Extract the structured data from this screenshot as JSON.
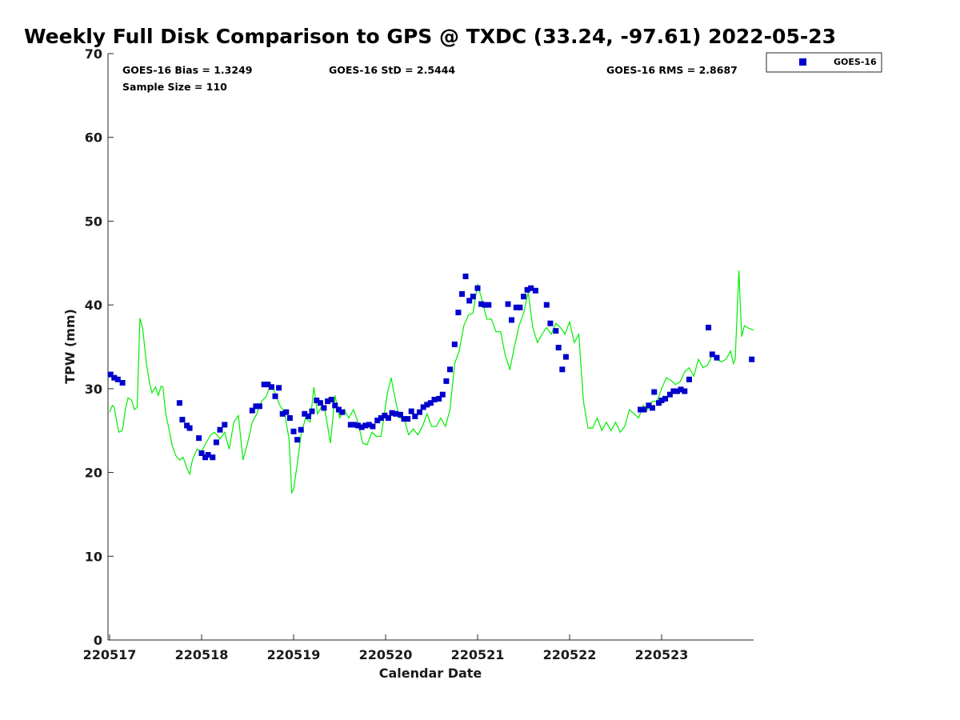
{
  "chart_data": {
    "type": "scatter",
    "title": "Weekly Full Disk Comparison to GPS @ TXDC (33.24, -97.61) 2022-05-23",
    "xlabel": "Calendar Date",
    "ylabel": "TPW (mm)",
    "xlim": [
      0,
      7.0
    ],
    "ylim": [
      0,
      70
    ],
    "x_tick_values": [
      0,
      1,
      2,
      3,
      4,
      5,
      6
    ],
    "x_tick_labels": [
      "220517",
      "220518",
      "220519",
      "220520",
      "220521",
      "220522",
      "220523"
    ],
    "y_ticks": [
      0,
      10,
      20,
      30,
      40,
      50,
      60,
      70
    ],
    "x_unit_note": "days since 2022-05-17 00Z",
    "grid": false,
    "legend_position": "top-right-outside",
    "stats": {
      "bias": "GOES-16 Bias = 1.3249",
      "std": "GOES-16 StD = 2.5444",
      "rms": "GOES-16 RMS = 2.8687",
      "sample": "Sample Size = 110"
    },
    "series": [
      {
        "name": "GOES-16",
        "kind": "markers",
        "color": "#0000cc",
        "points": [
          [
            0.01,
            31.7
          ],
          [
            0.05,
            31.3
          ],
          [
            0.09,
            31.1
          ],
          [
            0.14,
            30.7
          ],
          [
            0.76,
            28.3
          ],
          [
            0.79,
            26.3
          ],
          [
            0.84,
            25.6
          ],
          [
            0.87,
            25.3
          ],
          [
            0.97,
            24.1
          ],
          [
            1.0,
            22.3
          ],
          [
            1.04,
            21.8
          ],
          [
            1.07,
            22.1
          ],
          [
            1.12,
            21.8
          ],
          [
            1.16,
            23.6
          ],
          [
            1.2,
            25.1
          ],
          [
            1.25,
            25.7
          ],
          [
            1.55,
            27.4
          ],
          [
            1.59,
            27.9
          ],
          [
            1.63,
            27.9
          ],
          [
            1.68,
            30.5
          ],
          [
            1.72,
            30.5
          ],
          [
            1.76,
            30.2
          ],
          [
            1.8,
            29.1
          ],
          [
            1.84,
            30.1
          ],
          [
            1.88,
            27.0
          ],
          [
            1.92,
            27.2
          ],
          [
            1.96,
            26.5
          ],
          [
            2.0,
            24.9
          ],
          [
            2.04,
            23.9
          ],
          [
            2.08,
            25.1
          ],
          [
            2.12,
            27.0
          ],
          [
            2.16,
            26.7
          ],
          [
            2.2,
            27.3
          ],
          [
            2.25,
            28.6
          ],
          [
            2.29,
            28.3
          ],
          [
            2.33,
            27.7
          ],
          [
            2.37,
            28.5
          ],
          [
            2.41,
            28.7
          ],
          [
            2.45,
            28.0
          ],
          [
            2.49,
            27.5
          ],
          [
            2.53,
            27.2
          ],
          [
            2.62,
            25.7
          ],
          [
            2.66,
            25.7
          ],
          [
            2.7,
            25.6
          ],
          [
            2.74,
            25.4
          ],
          [
            2.78,
            25.6
          ],
          [
            2.82,
            25.7
          ],
          [
            2.86,
            25.5
          ],
          [
            2.91,
            26.2
          ],
          [
            2.95,
            26.5
          ],
          [
            2.99,
            26.8
          ],
          [
            3.03,
            26.5
          ],
          [
            3.07,
            27.1
          ],
          [
            3.11,
            27.0
          ],
          [
            3.16,
            26.9
          ],
          [
            3.2,
            26.4
          ],
          [
            3.24,
            26.4
          ],
          [
            3.28,
            27.3
          ],
          [
            3.32,
            26.7
          ],
          [
            3.37,
            27.2
          ],
          [
            3.41,
            27.8
          ],
          [
            3.45,
            28.1
          ],
          [
            3.49,
            28.3
          ],
          [
            3.53,
            28.7
          ],
          [
            3.58,
            28.8
          ],
          [
            3.62,
            29.3
          ],
          [
            3.66,
            30.9
          ],
          [
            3.7,
            32.3
          ],
          [
            3.75,
            35.3
          ],
          [
            3.79,
            39.1
          ],
          [
            3.83,
            41.3
          ],
          [
            3.87,
            43.4
          ],
          [
            3.91,
            40.5
          ],
          [
            3.95,
            41.0
          ],
          [
            4.0,
            42.0
          ],
          [
            4.04,
            40.1
          ],
          [
            4.08,
            40.0
          ],
          [
            4.12,
            40.0
          ],
          [
            4.33,
            40.1
          ],
          [
            4.37,
            38.2
          ],
          [
            4.42,
            39.7
          ],
          [
            4.46,
            39.7
          ],
          [
            4.5,
            41.0
          ],
          [
            4.54,
            41.8
          ],
          [
            4.58,
            42.0
          ],
          [
            4.63,
            41.7
          ],
          [
            4.75,
            40.0
          ],
          [
            4.79,
            37.8
          ],
          [
            4.85,
            36.9
          ],
          [
            4.88,
            34.9
          ],
          [
            4.92,
            32.3
          ],
          [
            4.96,
            33.8
          ],
          [
            5.77,
            27.5
          ],
          [
            5.81,
            27.5
          ],
          [
            5.86,
            28.0
          ],
          [
            5.9,
            27.7
          ],
          [
            5.92,
            29.6
          ],
          [
            5.97,
            28.3
          ],
          [
            6.0,
            28.6
          ],
          [
            6.04,
            28.8
          ],
          [
            6.09,
            29.3
          ],
          [
            6.13,
            29.7
          ],
          [
            6.17,
            29.7
          ],
          [
            6.21,
            29.9
          ],
          [
            6.25,
            29.7
          ],
          [
            6.3,
            31.1
          ],
          [
            6.51,
            37.3
          ],
          [
            6.55,
            34.1
          ],
          [
            6.6,
            33.7
          ],
          [
            6.98,
            33.5
          ]
        ]
      },
      {
        "name": "",
        "kind": "line",
        "color": "#00ee00",
        "points": [
          [
            0.0,
            27.2
          ],
          [
            0.03,
            28.0
          ],
          [
            0.05,
            27.8
          ],
          [
            0.07,
            26.5
          ],
          [
            0.1,
            24.8
          ],
          [
            0.14,
            25.0
          ],
          [
            0.17,
            27.5
          ],
          [
            0.2,
            28.9
          ],
          [
            0.24,
            28.6
          ],
          [
            0.27,
            27.5
          ],
          [
            0.3,
            27.8
          ],
          [
            0.33,
            38.4
          ],
          [
            0.36,
            37.2
          ],
          [
            0.4,
            33.0
          ],
          [
            0.43,
            31.0
          ],
          [
            0.46,
            29.5
          ],
          [
            0.5,
            30.2
          ],
          [
            0.53,
            29.2
          ],
          [
            0.56,
            30.3
          ],
          [
            0.58,
            30.2
          ],
          [
            0.61,
            27.0
          ],
          [
            0.64,
            25.5
          ],
          [
            0.68,
            23.2
          ],
          [
            0.72,
            22.0
          ],
          [
            0.76,
            21.5
          ],
          [
            0.8,
            21.8
          ],
          [
            0.84,
            20.5
          ],
          [
            0.87,
            19.8
          ],
          [
            0.9,
            21.5
          ],
          [
            0.95,
            22.8
          ],
          [
            1.0,
            22.5
          ],
          [
            1.05,
            23.6
          ],
          [
            1.1,
            24.5
          ],
          [
            1.14,
            24.8
          ],
          [
            1.2,
            24.0
          ],
          [
            1.25,
            24.8
          ],
          [
            1.3,
            22.8
          ],
          [
            1.35,
            26.0
          ],
          [
            1.4,
            26.8
          ],
          [
            1.45,
            21.5
          ],
          [
            1.5,
            23.5
          ],
          [
            1.55,
            26.0
          ],
          [
            1.6,
            27.0
          ],
          [
            1.65,
            28.5
          ],
          [
            1.7,
            29.0
          ],
          [
            1.75,
            30.5
          ],
          [
            1.8,
            29.5
          ],
          [
            1.85,
            28.0
          ],
          [
            1.9,
            27.2
          ],
          [
            1.95,
            24.0
          ],
          [
            1.98,
            17.6
          ],
          [
            2.0,
            18.0
          ],
          [
            2.04,
            21.0
          ],
          [
            2.08,
            24.5
          ],
          [
            2.13,
            26.5
          ],
          [
            2.18,
            26.0
          ],
          [
            2.22,
            30.2
          ],
          [
            2.26,
            27.0
          ],
          [
            2.3,
            27.8
          ],
          [
            2.34,
            27.5
          ],
          [
            2.4,
            23.5
          ],
          [
            2.45,
            29.2
          ],
          [
            2.5,
            26.5
          ],
          [
            2.55,
            27.5
          ],
          [
            2.6,
            26.5
          ],
          [
            2.65,
            27.5
          ],
          [
            2.7,
            26.0
          ],
          [
            2.75,
            23.5
          ],
          [
            2.8,
            23.3
          ],
          [
            2.85,
            24.8
          ],
          [
            2.9,
            24.3
          ],
          [
            2.95,
            24.3
          ],
          [
            2.98,
            26.5
          ],
          [
            3.02,
            29.5
          ],
          [
            3.06,
            31.3
          ],
          [
            3.1,
            29.0
          ],
          [
            3.15,
            26.5
          ],
          [
            3.2,
            26.5
          ],
          [
            3.25,
            24.5
          ],
          [
            3.3,
            25.2
          ],
          [
            3.35,
            24.5
          ],
          [
            3.4,
            25.5
          ],
          [
            3.45,
            27.0
          ],
          [
            3.5,
            25.5
          ],
          [
            3.55,
            25.5
          ],
          [
            3.6,
            26.5
          ],
          [
            3.65,
            25.5
          ],
          [
            3.7,
            27.5
          ],
          [
            3.75,
            33.0
          ],
          [
            3.8,
            34.5
          ],
          [
            3.85,
            37.5
          ],
          [
            3.9,
            38.8
          ],
          [
            3.95,
            39.0
          ],
          [
            4.0,
            42.5
          ],
          [
            4.05,
            40.5
          ],
          [
            4.1,
            38.3
          ],
          [
            4.15,
            38.3
          ],
          [
            4.2,
            36.8
          ],
          [
            4.25,
            36.8
          ],
          [
            4.3,
            34.0
          ],
          [
            4.35,
            32.3
          ],
          [
            4.4,
            35.0
          ],
          [
            4.45,
            37.5
          ],
          [
            4.5,
            39.0
          ],
          [
            4.55,
            41.5
          ],
          [
            4.6,
            37.3
          ],
          [
            4.65,
            35.5
          ],
          [
            4.7,
            36.5
          ],
          [
            4.75,
            37.3
          ],
          [
            4.8,
            36.5
          ],
          [
            4.85,
            37.8
          ],
          [
            4.9,
            37.3
          ],
          [
            4.95,
            36.5
          ],
          [
            5.0,
            38.0
          ],
          [
            5.05,
            35.5
          ],
          [
            5.1,
            36.5
          ],
          [
            5.15,
            28.5
          ],
          [
            5.2,
            25.3
          ],
          [
            5.25,
            25.3
          ],
          [
            5.3,
            26.5
          ],
          [
            5.35,
            25.0
          ],
          [
            5.4,
            26.0
          ],
          [
            5.45,
            25.0
          ],
          [
            5.5,
            26.0
          ],
          [
            5.55,
            24.8
          ],
          [
            5.6,
            25.5
          ],
          [
            5.65,
            27.5
          ],
          [
            5.7,
            27.0
          ],
          [
            5.75,
            26.5
          ],
          [
            5.8,
            28.0
          ],
          [
            5.85,
            27.5
          ],
          [
            5.9,
            28.5
          ],
          [
            5.95,
            28.5
          ],
          [
            6.0,
            30.0
          ],
          [
            6.05,
            31.3
          ],
          [
            6.1,
            31.0
          ],
          [
            6.15,
            30.5
          ],
          [
            6.2,
            30.8
          ],
          [
            6.25,
            32.0
          ],
          [
            6.3,
            32.5
          ],
          [
            6.35,
            31.5
          ],
          [
            6.4,
            33.5
          ],
          [
            6.45,
            32.5
          ],
          [
            6.5,
            32.8
          ],
          [
            6.55,
            34.0
          ],
          [
            6.6,
            33.5
          ],
          [
            6.65,
            33.2
          ],
          [
            6.7,
            33.5
          ],
          [
            6.75,
            34.5
          ],
          [
            6.78,
            33.0
          ],
          [
            6.8,
            33.5
          ],
          [
            6.84,
            44.1
          ],
          [
            6.87,
            36.2
          ],
          [
            6.9,
            37.5
          ],
          [
            6.95,
            37.2
          ],
          [
            7.0,
            37.0
          ]
        ]
      }
    ]
  }
}
